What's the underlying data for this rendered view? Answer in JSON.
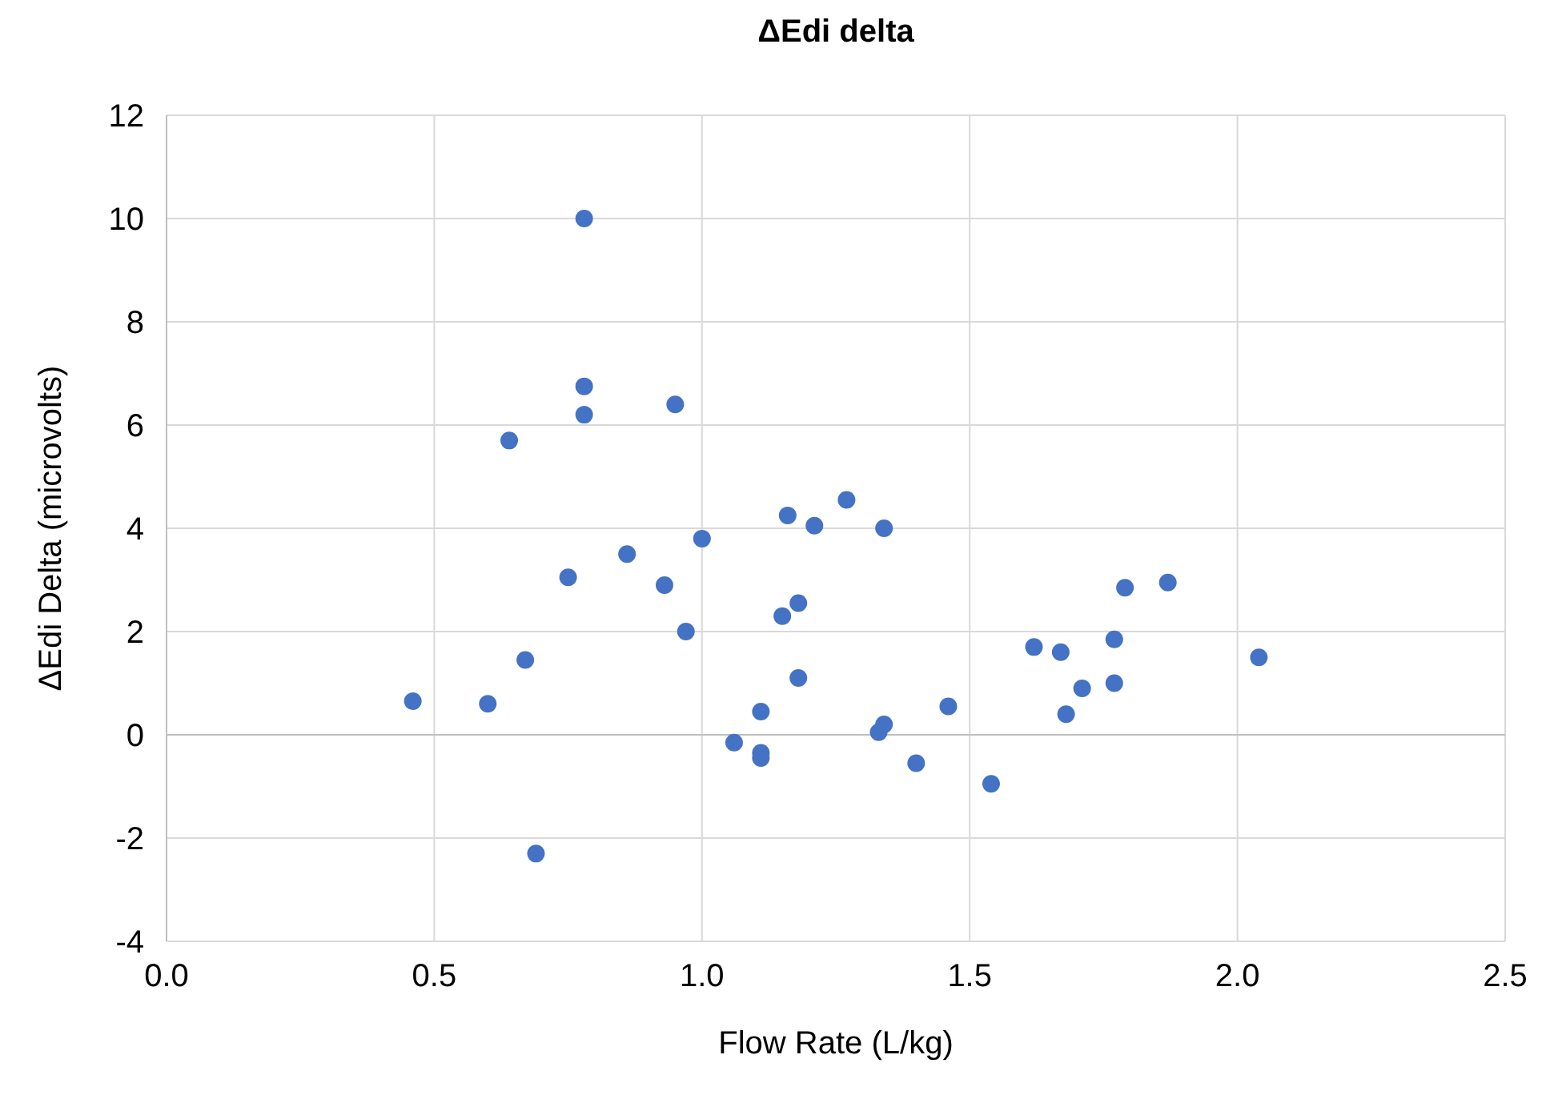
{
  "chart_data": {
    "type": "scatter",
    "title": "ΔEdi delta",
    "xlabel": "Flow Rate (L/kg)",
    "ylabel": "ΔEdi Delta (microvolts)",
    "xlim": [
      0,
      2.5
    ],
    "xticks": [
      {
        "value": 0,
        "label": "0.0"
      },
      {
        "value": 0.5,
        "label": "0.5"
      },
      {
        "value": 1,
        "label": "1.0"
      },
      {
        "value": 1.5,
        "label": "1.5"
      },
      {
        "value": 2,
        "label": "2.0"
      },
      {
        "value": 2.5,
        "label": "2.5"
      }
    ],
    "ylim": [
      -4,
      12
    ],
    "yticks": [
      -4,
      -2,
      0,
      2,
      4,
      6,
      8,
      10,
      12
    ],
    "grid": true,
    "marker": "circle",
    "series": [
      {
        "color": "#4472c4",
        "x": [
          0.78,
          0.78,
          0.78,
          0.95,
          0.64,
          1.27,
          1.16,
          1.21,
          1.34,
          1.0,
          0.86,
          0.75,
          0.93,
          1.87,
          1.79,
          1.18,
          1.15,
          0.97,
          1.77,
          1.62,
          1.67,
          2.04,
          0.67,
          1.18,
          1.77,
          1.71,
          1.68,
          1.11,
          1.46,
          0.46,
          0.6,
          1.34,
          1.33,
          1.06,
          1.11,
          1.11,
          1.4,
          1.54,
          0.69
        ],
        "values": [
          10.0,
          6.75,
          6.2,
          6.4,
          5.7,
          4.55,
          4.25,
          4.05,
          4.0,
          3.8,
          3.5,
          3.05,
          2.9,
          2.95,
          2.85,
          2.55,
          2.3,
          2.0,
          1.85,
          1.7,
          1.6,
          1.5,
          1.45,
          1.1,
          1.0,
          0.9,
          0.4,
          0.45,
          0.55,
          0.65,
          0.6,
          0.2,
          0.05,
          -0.15,
          -0.35,
          -0.45,
          -0.55,
          -0.95,
          -2.3
        ]
      }
    ]
  }
}
